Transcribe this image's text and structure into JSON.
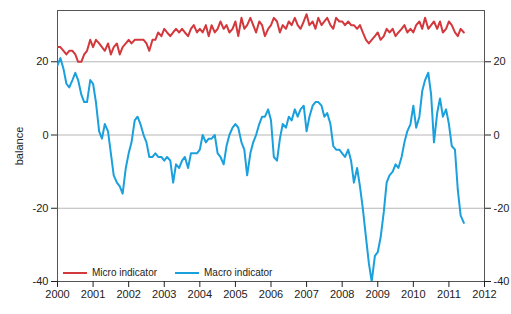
{
  "chart_data": {
    "type": "line",
    "y_label": "balance",
    "x": [
      2000,
      2000.08,
      2000.17,
      2000.25,
      2000.33,
      2000.42,
      2000.5,
      2000.58,
      2000.67,
      2000.75,
      2000.83,
      2000.92,
      2001,
      2001.08,
      2001.17,
      2001.25,
      2001.33,
      2001.42,
      2001.5,
      2001.58,
      2001.67,
      2001.75,
      2001.83,
      2001.92,
      2002,
      2002.08,
      2002.17,
      2002.25,
      2002.33,
      2002.42,
      2002.5,
      2002.58,
      2002.67,
      2002.75,
      2002.83,
      2002.92,
      2003,
      2003.08,
      2003.17,
      2003.25,
      2003.33,
      2003.42,
      2003.5,
      2003.58,
      2003.67,
      2003.75,
      2003.83,
      2003.92,
      2004,
      2004.08,
      2004.17,
      2004.25,
      2004.33,
      2004.42,
      2004.5,
      2004.58,
      2004.67,
      2004.75,
      2004.83,
      2004.92,
      2005,
      2005.08,
      2005.17,
      2005.25,
      2005.33,
      2005.42,
      2005.5,
      2005.58,
      2005.67,
      2005.75,
      2005.83,
      2005.92,
      2006,
      2006.08,
      2006.17,
      2006.25,
      2006.33,
      2006.42,
      2006.5,
      2006.58,
      2006.67,
      2006.75,
      2006.83,
      2006.92,
      2007,
      2007.08,
      2007.17,
      2007.25,
      2007.33,
      2007.42,
      2007.5,
      2007.58,
      2007.67,
      2007.75,
      2007.83,
      2007.92,
      2008,
      2008.08,
      2008.17,
      2008.25,
      2008.33,
      2008.42,
      2008.5,
      2008.58,
      2008.67,
      2008.75,
      2008.83,
      2008.92,
      2009,
      2009.08,
      2009.17,
      2009.25,
      2009.33,
      2009.42,
      2009.5,
      2009.58,
      2009.67,
      2009.75,
      2009.83,
      2009.92,
      2010,
      2010.08,
      2010.17,
      2010.25,
      2010.33,
      2010.42,
      2010.5,
      2010.58,
      2010.67,
      2010.75,
      2010.83,
      2010.92,
      2011,
      2011.08,
      2011.17,
      2011.25,
      2011.33,
      2011.42
    ],
    "series": [
      {
        "name": "Micro indicator",
        "color": "#d2383c",
        "values": [
          24,
          24,
          23,
          22,
          23,
          23,
          22,
          20,
          20,
          22,
          23,
          26,
          24,
          26,
          25,
          24,
          23,
          25,
          22,
          24,
          25,
          22,
          24,
          25,
          26,
          25,
          26,
          26,
          26,
          26,
          25,
          23,
          26,
          26,
          28,
          27,
          29,
          28,
          27,
          28,
          29,
          28,
          29,
          28,
          27,
          29,
          30,
          28,
          29,
          28,
          30,
          27,
          30,
          28,
          29,
          31,
          29,
          30,
          28,
          29,
          31,
          27,
          32,
          29,
          30,
          32,
          30,
          28,
          31,
          30,
          27,
          29,
          30,
          32,
          31,
          28,
          30,
          29,
          31,
          30,
          32,
          30,
          29,
          31,
          33,
          30,
          31,
          29,
          32,
          30,
          31,
          32,
          30,
          29,
          32,
          31,
          31,
          30,
          31,
          30,
          30,
          29,
          30,
          28,
          26,
          25,
          26,
          27,
          28,
          26,
          27,
          29,
          28,
          29,
          27,
          28,
          29,
          30,
          28,
          29,
          28,
          30,
          31,
          29,
          32,
          29,
          30,
          31,
          29,
          31,
          28,
          29,
          31,
          30,
          28,
          27,
          29,
          28
        ]
      },
      {
        "name": "Macro indicator",
        "color": "#1aa0dc",
        "values": [
          19,
          21,
          18,
          14,
          13,
          15,
          17,
          15,
          11,
          9,
          9,
          15,
          14,
          9,
          1,
          -1,
          3,
          1,
          -5,
          -11,
          -13,
          -14,
          -16,
          -9,
          -5,
          -2,
          4,
          5,
          3,
          0,
          -2,
          -6,
          -6,
          -5,
          -6,
          -6,
          -7,
          -6,
          -7,
          -13,
          -8,
          -9,
          -7,
          -6,
          -9,
          -5,
          -5,
          -5,
          -4,
          0,
          -2,
          -1,
          -1,
          0,
          -5,
          -6,
          -8,
          -3,
          0,
          2,
          3,
          2,
          -2,
          -4,
          -11,
          -5,
          -2,
          0,
          3,
          5,
          5,
          7,
          4,
          -6,
          -7,
          -1,
          3,
          2,
          5,
          4,
          7,
          5,
          7,
          8,
          1,
          5,
          8,
          9,
          9,
          8,
          5,
          6,
          3,
          -3,
          -4,
          -4,
          -5,
          -6,
          -4,
          -7,
          -13,
          -9,
          -14,
          -20,
          -28,
          -35,
          -40,
          -33,
          -32,
          -28,
          -21,
          -13,
          -11,
          -10,
          -8,
          -9,
          -6,
          -2,
          1,
          3,
          8,
          2,
          5,
          12,
          15,
          17,
          11,
          -2,
          6,
          10,
          5,
          7,
          3,
          -3,
          -4,
          -15,
          -22,
          -24
        ]
      }
    ],
    "xlim": [
      2000,
      2012
    ],
    "xticks": [
      2000,
      2001,
      2002,
      2003,
      2004,
      2005,
      2006,
      2007,
      2008,
      2009,
      2010,
      2011,
      2012
    ],
    "ylim": [
      -40,
      34
    ],
    "yticks": [
      -40,
      -20,
      0,
      20
    ],
    "grid": true,
    "legend": "bottom-left"
  }
}
